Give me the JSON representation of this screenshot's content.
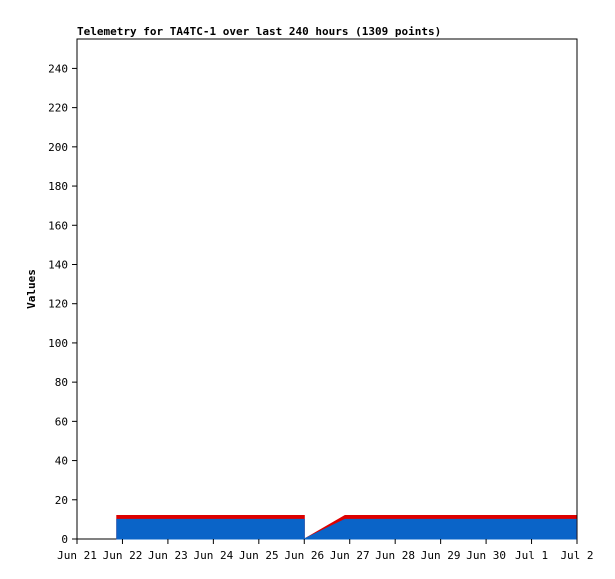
{
  "chart_data": {
    "type": "area",
    "title": "Telemetry for TA4TC-1 over last 240 hours (1309 points)",
    "xlabel": "",
    "ylabel": "Values",
    "ylim": [
      0,
      255
    ],
    "yticks": [
      0,
      20,
      40,
      60,
      80,
      100,
      120,
      140,
      160,
      180,
      200,
      220,
      240
    ],
    "xlim": [
      "2025-06-21",
      "2025-07-02"
    ],
    "xticks": [
      {
        "date": "2025-06-21",
        "label": "Jun 21"
      },
      {
        "date": "2025-06-22",
        "label": "Jun 22"
      },
      {
        "date": "2025-06-23",
        "label": "Jun 23"
      },
      {
        "date": "2025-06-24",
        "label": "Jun 24"
      },
      {
        "date": "2025-06-25",
        "label": "Jun 25"
      },
      {
        "date": "2025-06-26",
        "label": "Jun 26"
      },
      {
        "date": "2025-06-27",
        "label": "Jun 27"
      },
      {
        "date": "2025-06-28",
        "label": "Jun 28"
      },
      {
        "date": "2025-06-29",
        "label": "Jun 29"
      },
      {
        "date": "2025-06-30",
        "label": "Jun 30"
      },
      {
        "date": "2025-07-01",
        "label": "Jul 1"
      },
      {
        "date": "2025-07-02",
        "label": "Jul 2"
      }
    ],
    "grid": false,
    "legend": "none",
    "series": [
      {
        "color": "#dd0000",
        "values": [
          {
            "x": "2025-06-21T21:00",
            "y": 12
          },
          {
            "x": "2025-06-26T00:00",
            "y": 12
          },
          {
            "x": "2025-06-26T00:00",
            "y": 0
          },
          {
            "x": "2025-06-26T21:30",
            "y": 12
          },
          {
            "x": "2025-07-01T23:30",
            "y": 12
          }
        ]
      },
      {
        "color": "#0a64c8",
        "values": [
          {
            "x": "2025-06-21T21:00",
            "y": 10
          },
          {
            "x": "2025-06-26T00:00",
            "y": 10
          },
          {
            "x": "2025-06-26T00:00",
            "y": 0
          },
          {
            "x": "2025-06-26T21:30",
            "y": 10
          },
          {
            "x": "2025-07-01T23:30",
            "y": 10
          }
        ]
      }
    ]
  }
}
